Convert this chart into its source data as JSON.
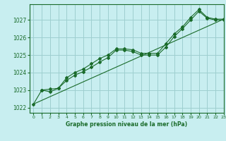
{
  "title": "Graphe pression niveau de la mer (hPa)",
  "bg_color": "#c8eef0",
  "grid_color": "#9ecfcf",
  "line_color": "#1a6b2a",
  "xlim": [
    -0.5,
    23
  ],
  "ylim": [
    1021.7,
    1027.9
  ],
  "xticks": [
    0,
    1,
    2,
    3,
    4,
    5,
    6,
    7,
    8,
    9,
    10,
    11,
    12,
    13,
    14,
    15,
    16,
    17,
    18,
    19,
    20,
    21,
    22,
    23
  ],
  "yticks": [
    1022,
    1023,
    1024,
    1025,
    1026,
    1027
  ],
  "series1_x": [
    0,
    1,
    2,
    3,
    4,
    5,
    6,
    7,
    8,
    9,
    10,
    11,
    12,
    13,
    14,
    15,
    16,
    17,
    18,
    19,
    20,
    21,
    22,
    23
  ],
  "series1_y": [
    1022.2,
    1023.0,
    1022.9,
    1023.1,
    1023.55,
    1023.85,
    1024.05,
    1024.3,
    1024.6,
    1024.85,
    1025.28,
    1025.28,
    1025.2,
    1025.0,
    1025.0,
    1025.0,
    1025.45,
    1026.05,
    1026.5,
    1027.0,
    1027.5,
    1027.1,
    1027.0,
    1027.0
  ],
  "series2_x": [
    1,
    2,
    3,
    4,
    5,
    6,
    7,
    8,
    9,
    10,
    11,
    12,
    13,
    14,
    15,
    16,
    17,
    18,
    19,
    20,
    21,
    22,
    23
  ],
  "series2_y": [
    1023.0,
    1023.05,
    1023.1,
    1023.7,
    1024.0,
    1024.2,
    1024.5,
    1024.8,
    1025.0,
    1025.35,
    1025.35,
    1025.3,
    1025.1,
    1025.1,
    1025.1,
    1025.65,
    1026.2,
    1026.6,
    1027.15,
    1027.6,
    1027.15,
    1027.05,
    1027.05
  ],
  "series3_x": [
    0,
    23
  ],
  "series3_y": [
    1022.2,
    1027.05
  ]
}
